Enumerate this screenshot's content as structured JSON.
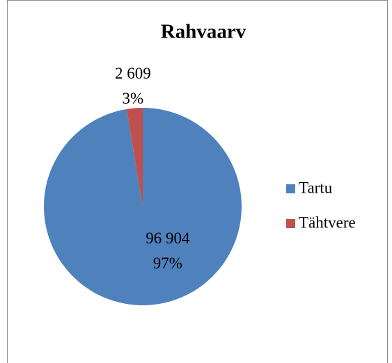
{
  "chart_data": {
    "type": "pie",
    "title": "Rahvaarv",
    "categories": [
      "Tartu",
      "Tähtvere"
    ],
    "values": [
      96904,
      2609
    ],
    "value_labels": [
      "96 904",
      "2 609"
    ],
    "percentages": [
      97,
      3
    ],
    "percent_labels": [
      "97%",
      "3%"
    ],
    "colors": [
      "#4f81bd",
      "#c0504d"
    ],
    "legend": "right"
  }
}
